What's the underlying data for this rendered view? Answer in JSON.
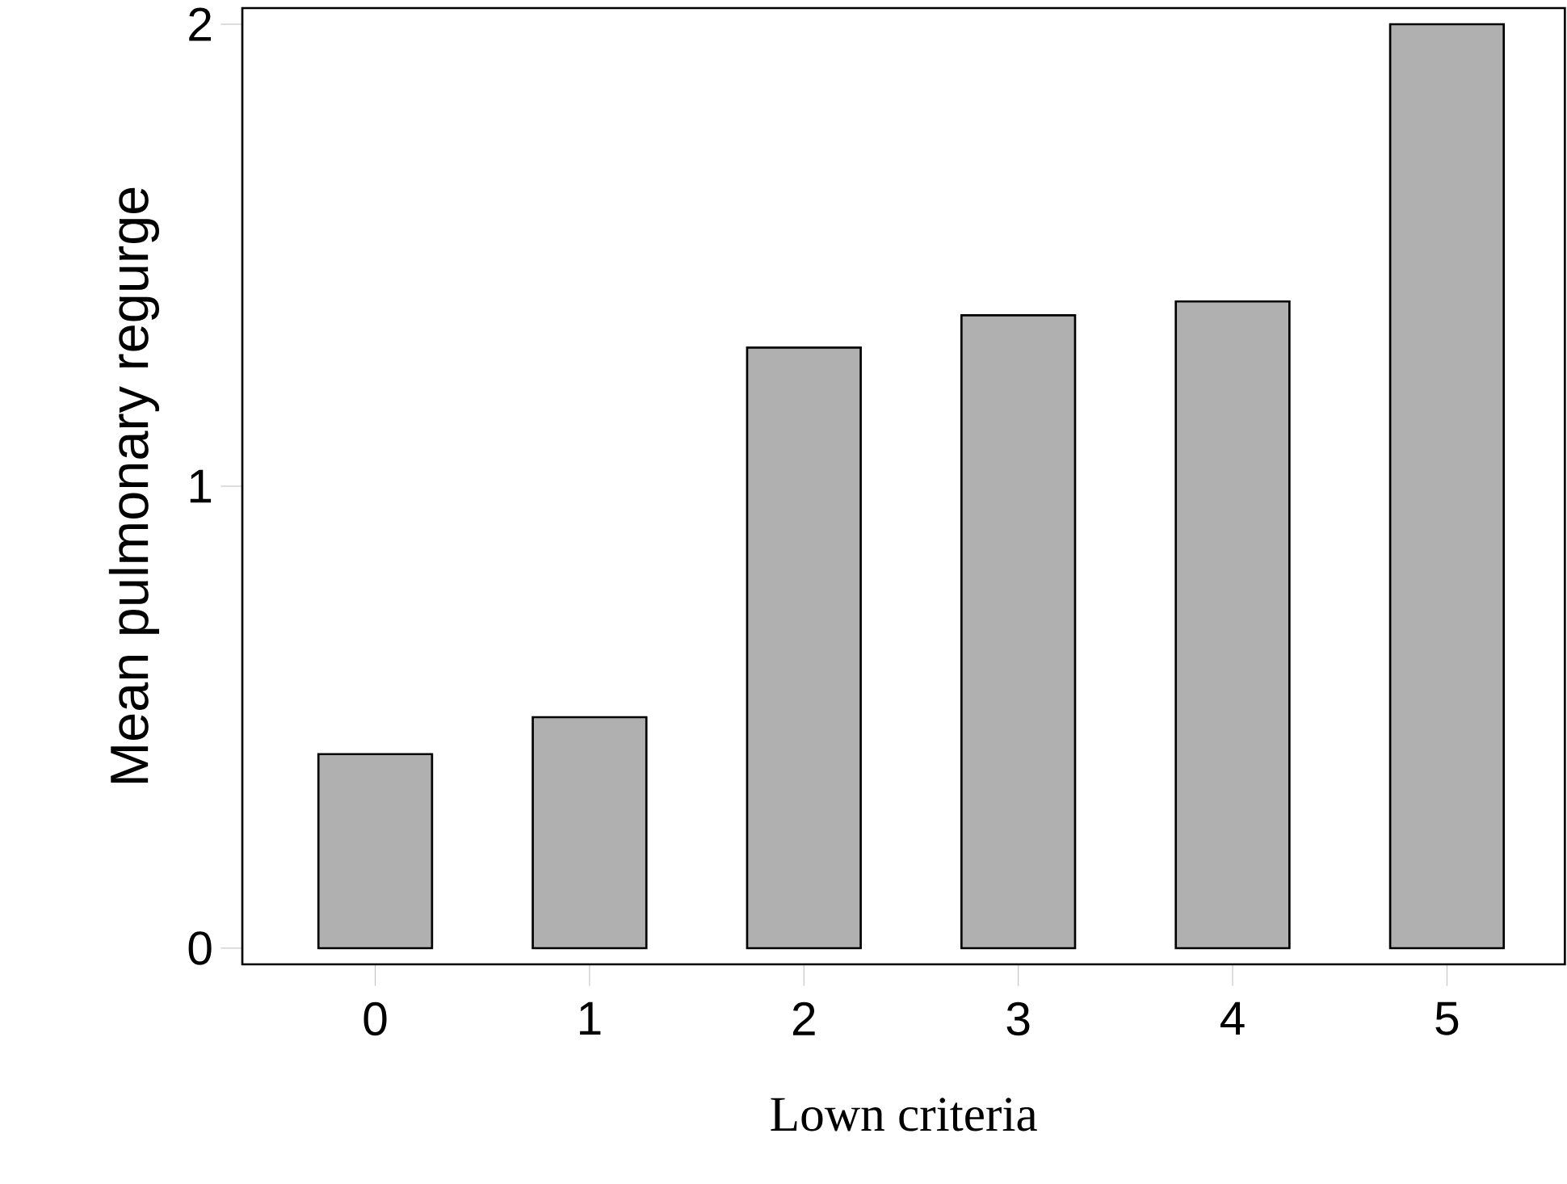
{
  "chart_data": {
    "type": "bar",
    "xlabel": "Lown criteria",
    "ylabel": "Mean pulmonary regurge",
    "categories": [
      "0",
      "1",
      "2",
      "3",
      "4",
      "5"
    ],
    "values": [
      0.42,
      0.5,
      1.3,
      1.37,
      1.4,
      2.0
    ],
    "color": "#b0b0b0",
    "ylim": [
      -0.035,
      2.035
    ],
    "yticks": [
      0,
      1,
      2
    ]
  }
}
